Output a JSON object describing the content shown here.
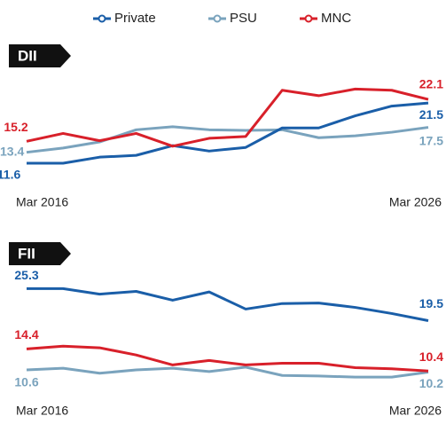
{
  "chart_data": [
    {
      "type": "line",
      "title": "DII",
      "categories": [
        "Mar 2016",
        null,
        null,
        null,
        null,
        null,
        null,
        null,
        null,
        null,
        null,
        "Mar 2026"
      ],
      "ylim": [
        10,
        24
      ],
      "series": [
        {
          "name": "Private",
          "color": "#1a5ea8",
          "values": [
            11.6,
            11.6,
            12.6,
            12.9,
            14.5,
            13.6,
            14.2,
            17.4,
            17.4,
            19.4,
            21.0,
            21.5
          ]
        },
        {
          "name": "PSU",
          "color": "#7aa3bd",
          "values": [
            13.4,
            14.1,
            15.1,
            17.1,
            17.6,
            17.1,
            17.0,
            17.1,
            15.8,
            16.1,
            16.7,
            17.5
          ]
        },
        {
          "name": "MNC",
          "color": "#d8202a",
          "values": [
            15.2,
            16.5,
            15.3,
            16.5,
            14.4,
            15.7,
            16.0,
            23.6,
            22.7,
            23.8,
            23.6,
            22.1
          ]
        }
      ]
    },
    {
      "type": "line",
      "title": "FII",
      "categories": [
        "Mar 2016",
        null,
        null,
        null,
        null,
        null,
        null,
        null,
        null,
        null,
        null,
        "Mar 2026"
      ],
      "ylim": [
        9,
        26
      ],
      "series": [
        {
          "name": "Private",
          "color": "#1a5ea8",
          "values": [
            25.3,
            25.3,
            24.3,
            24.8,
            23.2,
            24.7,
            21.6,
            22.6,
            22.7,
            21.9,
            20.8,
            19.5
          ]
        },
        {
          "name": "PSU",
          "color": "#7aa3bd",
          "values": [
            10.6,
            10.9,
            10.0,
            10.6,
            10.9,
            10.3,
            11.1,
            9.6,
            9.5,
            9.3,
            9.3,
            10.2
          ]
        },
        {
          "name": "MNC",
          "color": "#d8202a",
          "values": [
            14.4,
            14.9,
            14.6,
            13.3,
            11.5,
            12.3,
            11.5,
            11.8,
            11.8,
            11.0,
            10.8,
            10.4
          ]
        }
      ]
    }
  ]
}
